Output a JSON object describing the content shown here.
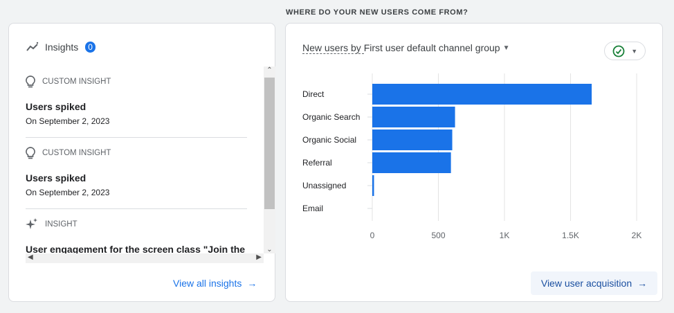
{
  "section_title": "WHERE DO YOUR NEW USERS COME FROM?",
  "insights": {
    "title": "Insights",
    "count": "0",
    "items": [
      {
        "kind": "CUSTOM INSIGHT",
        "icon": "lightbulb-icon",
        "title": "Users spiked",
        "date": "On September 2, 2023"
      },
      {
        "kind": "CUSTOM INSIGHT",
        "icon": "lightbulb-icon",
        "title": "Users spiked",
        "date": "On September 2, 2023"
      },
      {
        "kind": "INSIGHT",
        "icon": "sparkle-icon",
        "title": "User engagement for the screen class \"Join the",
        "date": ""
      }
    ],
    "view_all": "View all insights"
  },
  "chart_card": {
    "title_prefix": "New users by ",
    "title_dim": "First user default channel group",
    "view_link": "View user acquisition",
    "accent": "#1a73e8"
  },
  "chart_data": {
    "type": "bar",
    "orientation": "horizontal",
    "categories": [
      "Direct",
      "Organic Search",
      "Organic Social",
      "Referral",
      "Unassigned",
      "Email"
    ],
    "values": [
      1660,
      626,
      605,
      595,
      13,
      0
    ],
    "xlim": [
      0,
      2000
    ],
    "ticks": [
      0,
      500,
      1000,
      1500,
      2000
    ],
    "tick_labels": [
      "0",
      "500",
      "1K",
      "1.5K",
      "2K"
    ],
    "grid": true,
    "color": "#1a73e8"
  }
}
